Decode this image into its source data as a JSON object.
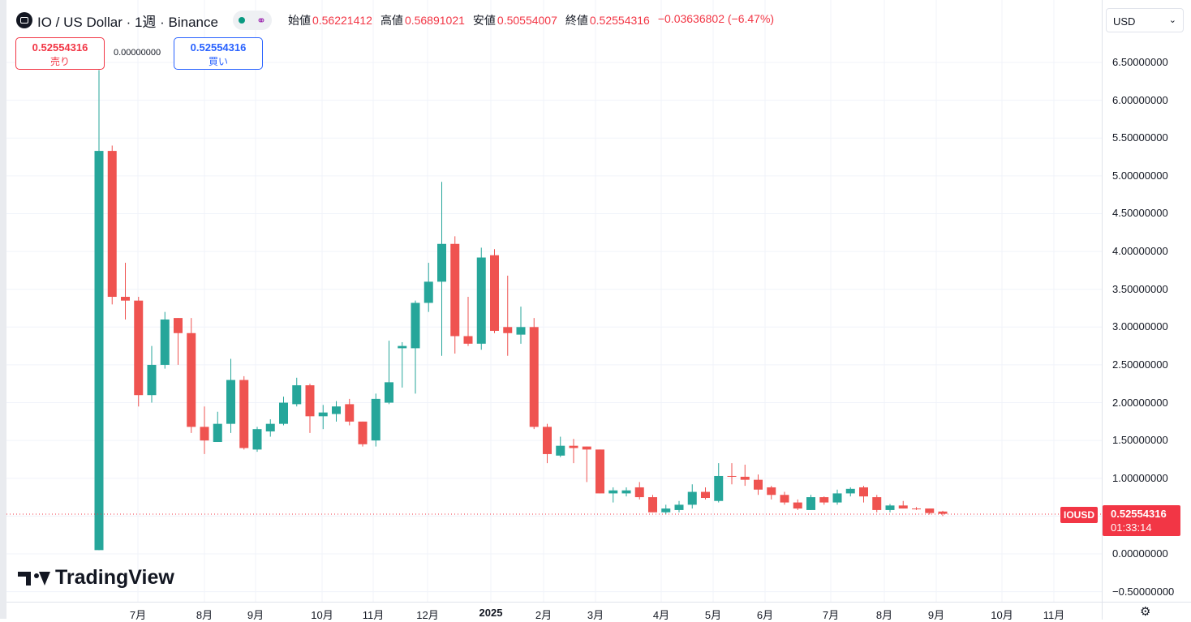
{
  "legend": {
    "title": "IO / US Dollar · 1週 · Binance",
    "open_label": "始値",
    "open": "0.56221412",
    "high_label": "高値",
    "high": "0.56891021",
    "low_label": "安値",
    "low": "0.50554007",
    "close_label": "終値",
    "close": "0.52554316",
    "change": "−0.03636802 (−6.47%)"
  },
  "trade": {
    "sell_price": "0.52554316",
    "sell_label": "売り",
    "spread": "0.00000000",
    "buy_price": "0.52554316",
    "buy_label": "買い"
  },
  "currency_select": "USD",
  "price_axis": [
    "6.50000000",
    "6.00000000",
    "5.50000000",
    "5.00000000",
    "4.50000000",
    "4.00000000",
    "3.50000000",
    "3.00000000",
    "2.50000000",
    "2.00000000",
    "1.50000000",
    "1.00000000",
    "0.00000000",
    "−0.50000000"
  ],
  "time_axis": [
    "7月",
    "8月",
    "9月",
    "10月",
    "11月",
    "12月",
    "2025",
    "2月",
    "3月",
    "4月",
    "5月",
    "6月",
    "7月",
    "8月",
    "9月",
    "10月",
    "11月"
  ],
  "symbol_tag": "IOUSD",
  "last_price": "0.52554316",
  "countdown": "01:33:14",
  "brand": "TradingView",
  "colors": {
    "up": "#26a69a",
    "down": "#ef5350",
    "accent": "#f23645",
    "buy": "#2962ff"
  },
  "icons": [
    "io-logo-icon",
    "market-open-dot-icon",
    "share-icon",
    "chevron-down-icon",
    "settings-gear-icon",
    "tradingview-logo-icon"
  ],
  "chart_data": {
    "type": "candlestick",
    "interval": "1 week",
    "ylim": [
      -0.5,
      6.9
    ],
    "grid": true,
    "candles": [
      {
        "o": 0.05,
        "h": 6.4,
        "l": 0.05,
        "c": 5.33
      },
      {
        "o": 5.33,
        "h": 5.4,
        "l": 3.3,
        "c": 3.4
      },
      {
        "o": 3.4,
        "h": 3.85,
        "l": 3.1,
        "c": 3.35
      },
      {
        "o": 3.35,
        "h": 3.4,
        "l": 1.95,
        "c": 2.1
      },
      {
        "o": 2.1,
        "h": 2.75,
        "l": 2.0,
        "c": 2.5
      },
      {
        "o": 2.5,
        "h": 3.2,
        "l": 2.45,
        "c": 3.1
      },
      {
        "o": 3.12,
        "h": 3.12,
        "l": 2.5,
        "c": 2.92
      },
      {
        "o": 2.92,
        "h": 3.12,
        "l": 1.6,
        "c": 1.68
      },
      {
        "o": 1.68,
        "h": 1.95,
        "l": 1.32,
        "c": 1.5
      },
      {
        "o": 1.48,
        "h": 1.88,
        "l": 1.48,
        "c": 1.72
      },
      {
        "o": 1.72,
        "h": 2.58,
        "l": 1.6,
        "c": 2.3
      },
      {
        "o": 2.3,
        "h": 2.35,
        "l": 1.38,
        "c": 1.4
      },
      {
        "o": 1.38,
        "h": 1.68,
        "l": 1.35,
        "c": 1.65
      },
      {
        "o": 1.62,
        "h": 1.78,
        "l": 1.55,
        "c": 1.72
      },
      {
        "o": 1.72,
        "h": 2.08,
        "l": 1.7,
        "c": 2.0
      },
      {
        "o": 1.98,
        "h": 2.33,
        "l": 1.95,
        "c": 2.23
      },
      {
        "o": 2.23,
        "h": 2.25,
        "l": 1.6,
        "c": 1.82
      },
      {
        "o": 1.82,
        "h": 1.97,
        "l": 1.65,
        "c": 1.87
      },
      {
        "o": 1.85,
        "h": 2.02,
        "l": 1.75,
        "c": 1.95
      },
      {
        "o": 1.98,
        "h": 2.05,
        "l": 1.7,
        "c": 1.75
      },
      {
        "o": 1.75,
        "h": 1.75,
        "l": 1.42,
        "c": 1.45
      },
      {
        "o": 1.5,
        "h": 2.12,
        "l": 1.42,
        "c": 2.05
      },
      {
        "o": 2.0,
        "h": 2.82,
        "l": 1.98,
        "c": 2.27
      },
      {
        "o": 2.72,
        "h": 2.8,
        "l": 2.2,
        "c": 2.75
      },
      {
        "o": 2.72,
        "h": 3.35,
        "l": 2.12,
        "c": 3.32
      },
      {
        "o": 3.32,
        "h": 3.85,
        "l": 3.2,
        "c": 3.6
      },
      {
        "o": 3.6,
        "h": 4.92,
        "l": 2.62,
        "c": 4.1
      },
      {
        "o": 4.1,
        "h": 4.2,
        "l": 2.65,
        "c": 2.88
      },
      {
        "o": 2.88,
        "h": 3.4,
        "l": 2.75,
        "c": 2.78
      },
      {
        "o": 2.78,
        "h": 4.05,
        "l": 2.7,
        "c": 3.92
      },
      {
        "o": 3.95,
        "h": 4.03,
        "l": 2.92,
        "c": 2.95
      },
      {
        "o": 3.0,
        "h": 3.68,
        "l": 2.62,
        "c": 2.92
      },
      {
        "o": 2.9,
        "h": 3.27,
        "l": 2.78,
        "c": 3.0
      },
      {
        "o": 3.0,
        "h": 3.12,
        "l": 1.65,
        "c": 1.68
      },
      {
        "o": 1.68,
        "h": 1.72,
        "l": 1.2,
        "c": 1.32
      },
      {
        "o": 1.3,
        "h": 1.55,
        "l": 1.28,
        "c": 1.43
      },
      {
        "o": 1.43,
        "h": 1.52,
        "l": 1.2,
        "c": 1.4
      },
      {
        "o": 1.42,
        "h": 1.42,
        "l": 0.95,
        "c": 1.38
      },
      {
        "o": 1.38,
        "h": 1.38,
        "l": 0.8,
        "c": 0.8
      },
      {
        "o": 0.8,
        "h": 0.88,
        "l": 0.68,
        "c": 0.84
      },
      {
        "o": 0.8,
        "h": 0.88,
        "l": 0.76,
        "c": 0.84
      },
      {
        "o": 0.88,
        "h": 0.95,
        "l": 0.72,
        "c": 0.75
      },
      {
        "o": 0.75,
        "h": 0.78,
        "l": 0.55,
        "c": 0.55
      },
      {
        "o": 0.55,
        "h": 0.65,
        "l": 0.52,
        "c": 0.6
      },
      {
        "o": 0.58,
        "h": 0.7,
        "l": 0.55,
        "c": 0.65
      },
      {
        "o": 0.65,
        "h": 0.92,
        "l": 0.6,
        "c": 0.82
      },
      {
        "o": 0.82,
        "h": 0.88,
        "l": 0.72,
        "c": 0.74
      },
      {
        "o": 0.7,
        "h": 1.2,
        "l": 0.68,
        "c": 1.03
      },
      {
        "o": 1.03,
        "h": 1.2,
        "l": 0.92,
        "c": 1.02
      },
      {
        "o": 1.02,
        "h": 1.18,
        "l": 0.9,
        "c": 0.98
      },
      {
        "o": 0.98,
        "h": 1.05,
        "l": 0.78,
        "c": 0.85
      },
      {
        "o": 0.88,
        "h": 0.9,
        "l": 0.72,
        "c": 0.78
      },
      {
        "o": 0.78,
        "h": 0.82,
        "l": 0.65,
        "c": 0.68
      },
      {
        "o": 0.68,
        "h": 0.72,
        "l": 0.58,
        "c": 0.6
      },
      {
        "o": 0.58,
        "h": 0.78,
        "l": 0.58,
        "c": 0.75
      },
      {
        "o": 0.75,
        "h": 0.76,
        "l": 0.65,
        "c": 0.68
      },
      {
        "o": 0.68,
        "h": 0.85,
        "l": 0.65,
        "c": 0.8
      },
      {
        "o": 0.8,
        "h": 0.88,
        "l": 0.76,
        "c": 0.86
      },
      {
        "o": 0.88,
        "h": 0.9,
        "l": 0.68,
        "c": 0.76
      },
      {
        "o": 0.75,
        "h": 0.78,
        "l": 0.55,
        "c": 0.58
      },
      {
        "o": 0.58,
        "h": 0.66,
        "l": 0.55,
        "c": 0.64
      },
      {
        "o": 0.64,
        "h": 0.7,
        "l": 0.6,
        "c": 0.6
      },
      {
        "o": 0.6,
        "h": 0.62,
        "l": 0.58,
        "c": 0.59
      },
      {
        "o": 0.6,
        "h": 0.6,
        "l": 0.52,
        "c": 0.54
      },
      {
        "o": 0.56,
        "h": 0.57,
        "l": 0.5,
        "c": 0.53
      }
    ]
  }
}
